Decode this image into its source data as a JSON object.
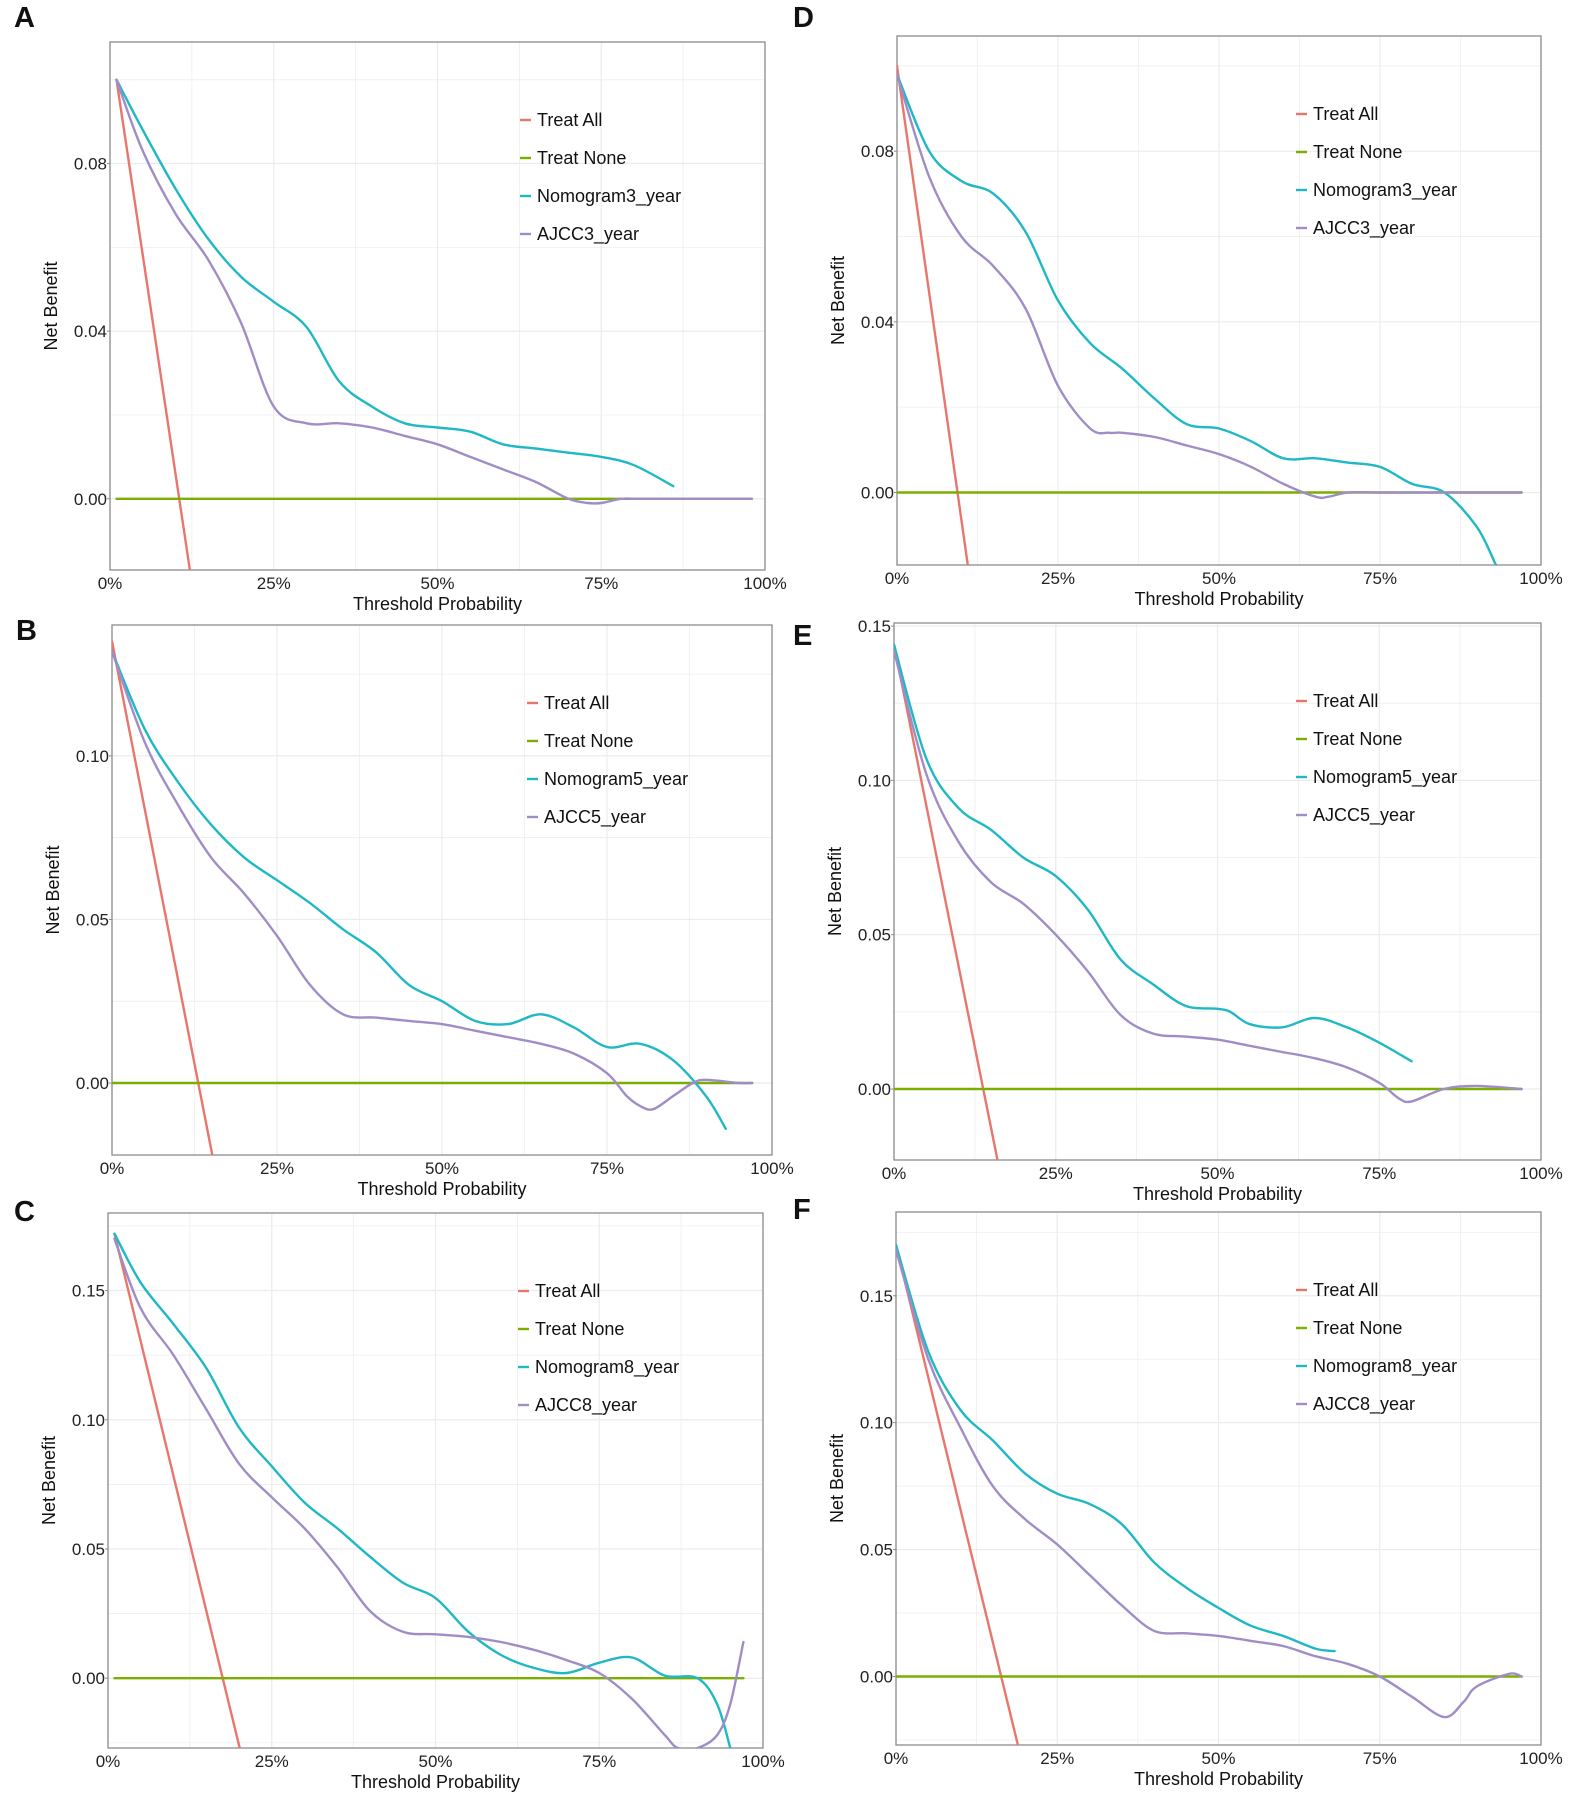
{
  "figure": {
    "colors": {
      "treat_all": "#e8766d",
      "treat_none": "#7cae00",
      "nomogram": "#1fb8c4",
      "ajcc": "#a18dc6",
      "grid": "#ececec",
      "frame": "#8c8c8c",
      "text": "#222222"
    }
  },
  "chart_data": [
    {
      "panel": "A",
      "type": "line",
      "xlabel": "Threshold Probability",
      "ylabel": "Net Benefit",
      "xlim": [
        0,
        100
      ],
      "ylim": [
        -0.017,
        0.109
      ],
      "xticks": [
        0,
        25,
        50,
        75,
        100
      ],
      "xtick_labels": [
        "0%",
        "25%",
        "50%",
        "75%",
        "100%"
      ],
      "yticks": [
        0.0,
        0.04,
        0.08
      ],
      "ytick_labels": [
        "0.00",
        "0.04",
        "0.08"
      ],
      "grid": true,
      "legend_position": "top-right",
      "legend": [
        "Treat All",
        "Treat None",
        "Nomogram3_year",
        "AJCC3_year"
      ],
      "series": [
        {
          "name": "Treat All",
          "role": "treat_all",
          "x": [
            1,
            12.2
          ],
          "y": [
            0.1,
            -0.017
          ]
        },
        {
          "name": "Treat None",
          "role": "treat_none",
          "x": [
            1,
            98
          ],
          "y": [
            0,
            0
          ]
        },
        {
          "name": "Nomogram3_year",
          "role": "nomogram",
          "x": [
            1,
            5,
            10,
            15,
            20,
            25,
            30,
            35,
            40,
            45,
            50,
            55,
            60,
            65,
            70,
            75,
            80,
            86
          ],
          "y": [
            0.1,
            0.088,
            0.074,
            0.062,
            0.053,
            0.047,
            0.041,
            0.028,
            0.022,
            0.018,
            0.017,
            0.016,
            0.013,
            0.012,
            0.011,
            0.01,
            0.008,
            0.003
          ]
        },
        {
          "name": "AJCC3_year",
          "role": "ajcc",
          "x": [
            1,
            5,
            10,
            15,
            20,
            25,
            30,
            35,
            40,
            45,
            50,
            55,
            60,
            65,
            70,
            73,
            75,
            78,
            80,
            85,
            90,
            98
          ],
          "y": [
            0.1,
            0.083,
            0.068,
            0.057,
            0.042,
            0.022,
            0.018,
            0.018,
            0.017,
            0.015,
            0.013,
            0.01,
            0.007,
            0.004,
            0.0,
            -0.001,
            -0.001,
            0.0,
            0.0,
            0.0,
            0.0,
            0.0
          ]
        }
      ]
    },
    {
      "panel": "B",
      "type": "line",
      "xlabel": "Threshold Probability",
      "ylabel": "Net Benefit",
      "xlim": [
        0,
        100
      ],
      "ylim": [
        -0.022,
        0.14
      ],
      "xticks": [
        0,
        25,
        50,
        75,
        100
      ],
      "xtick_labels": [
        "0%",
        "25%",
        "50%",
        "75%",
        "100%"
      ],
      "yticks": [
        0.0,
        0.05,
        0.1
      ],
      "ytick_labels": [
        "0.00",
        "0.05",
        "0.10"
      ],
      "grid": true,
      "legend_position": "top-right",
      "legend": [
        "Treat All",
        "Treat None",
        "Nomogram5_year",
        "AJCC5_year"
      ],
      "series": [
        {
          "name": "Treat All",
          "role": "treat_all",
          "x": [
            0,
            15.2
          ],
          "y": [
            0.135,
            -0.022
          ]
        },
        {
          "name": "Treat None",
          "role": "treat_none",
          "x": [
            0,
            97
          ],
          "y": [
            0,
            0
          ]
        },
        {
          "name": "Nomogram5_year",
          "role": "nomogram",
          "x": [
            0,
            5,
            10,
            15,
            20,
            25,
            30,
            35,
            40,
            45,
            50,
            55,
            60,
            65,
            70,
            75,
            80,
            85,
            90,
            93
          ],
          "y": [
            0.132,
            0.108,
            0.092,
            0.079,
            0.069,
            0.062,
            0.055,
            0.047,
            0.04,
            0.03,
            0.025,
            0.019,
            0.018,
            0.021,
            0.017,
            0.011,
            0.012,
            0.007,
            -0.004,
            -0.014
          ]
        },
        {
          "name": "AJCC5_year",
          "role": "ajcc",
          "x": [
            0,
            5,
            10,
            15,
            20,
            25,
            30,
            35,
            40,
            45,
            50,
            55,
            60,
            65,
            70,
            75,
            78,
            80,
            82,
            85,
            88,
            90,
            95,
            97
          ],
          "y": [
            0.132,
            0.104,
            0.085,
            0.069,
            0.058,
            0.045,
            0.03,
            0.021,
            0.02,
            0.019,
            0.018,
            0.016,
            0.014,
            0.012,
            0.009,
            0.003,
            -0.004,
            -0.007,
            -0.008,
            -0.004,
            0.0,
            0.001,
            0.0,
            0.0
          ]
        }
      ]
    },
    {
      "panel": "C",
      "type": "line",
      "xlabel": "Threshold Probability",
      "ylabel": "Net Benefit",
      "xlim": [
        0,
        100
      ],
      "ylim": [
        -0.027,
        0.18
      ],
      "xticks": [
        0,
        25,
        50,
        75,
        100
      ],
      "xtick_labels": [
        "0%",
        "25%",
        "50%",
        "75%",
        "100%"
      ],
      "yticks": [
        0.0,
        0.05,
        0.1,
        0.15
      ],
      "ytick_labels": [
        "0.00",
        "0.05",
        "0.10",
        "0.15"
      ],
      "grid": true,
      "legend_position": "top-right",
      "legend": [
        "Treat All",
        "Treat None",
        "Nomogram8_year",
        "AJCC8_year"
      ],
      "series": [
        {
          "name": "Treat All",
          "role": "treat_all",
          "x": [
            1,
            20.1
          ],
          "y": [
            0.172,
            -0.027
          ]
        },
        {
          "name": "Treat None",
          "role": "treat_none",
          "x": [
            1,
            97
          ],
          "y": [
            0,
            0
          ]
        },
        {
          "name": "Nomogram8_year",
          "role": "nomogram",
          "x": [
            1,
            5,
            10,
            15,
            20,
            25,
            30,
            35,
            40,
            45,
            50,
            55,
            60,
            65,
            70,
            75,
            80,
            85,
            90,
            93,
            95
          ],
          "y": [
            0.172,
            0.153,
            0.137,
            0.12,
            0.097,
            0.082,
            0.068,
            0.058,
            0.047,
            0.037,
            0.031,
            0.018,
            0.009,
            0.004,
            0.002,
            0.006,
            0.008,
            0.001,
            0.0,
            -0.01,
            -0.027
          ]
        },
        {
          "name": "AJCC8_year",
          "role": "ajcc",
          "x": [
            1,
            5,
            10,
            15,
            20,
            25,
            30,
            35,
            40,
            45,
            50,
            55,
            60,
            65,
            70,
            75,
            80,
            85,
            87,
            90,
            93,
            95,
            97
          ],
          "y": [
            0.17,
            0.143,
            0.125,
            0.104,
            0.083,
            0.07,
            0.058,
            0.043,
            0.026,
            0.018,
            0.017,
            0.016,
            0.014,
            0.011,
            0.007,
            0.002,
            -0.008,
            -0.022,
            -0.027,
            -0.027,
            -0.022,
            -0.01,
            0.014
          ]
        }
      ]
    },
    {
      "panel": "D",
      "type": "line",
      "xlabel": "Threshold Probability",
      "ylabel": "Net Benefit",
      "xlim": [
        0,
        100
      ],
      "ylim": [
        -0.017,
        0.107
      ],
      "xticks": [
        0,
        25,
        50,
        75,
        100
      ],
      "xtick_labels": [
        "0%",
        "25%",
        "50%",
        "75%",
        "100%"
      ],
      "yticks": [
        0.0,
        0.04,
        0.08
      ],
      "ytick_labels": [
        "0.00",
        "0.04",
        "0.08"
      ],
      "grid": true,
      "legend_position": "top-right",
      "legend": [
        "Treat All",
        "Treat None",
        "Nomogram3_year",
        "AJCC3_year"
      ],
      "series": [
        {
          "name": "Treat All",
          "role": "treat_all",
          "x": [
            0,
            11
          ],
          "y": [
            0.1,
            -0.017
          ]
        },
        {
          "name": "Treat None",
          "role": "treat_none",
          "x": [
            0,
            97
          ],
          "y": [
            0,
            0
          ]
        },
        {
          "name": "Nomogram3_year",
          "role": "nomogram",
          "x": [
            0,
            5,
            10,
            15,
            20,
            25,
            30,
            35,
            40,
            45,
            50,
            55,
            60,
            65,
            70,
            75,
            80,
            85,
            90,
            93
          ],
          "y": [
            0.098,
            0.08,
            0.073,
            0.07,
            0.061,
            0.045,
            0.035,
            0.029,
            0.022,
            0.016,
            0.015,
            0.012,
            0.008,
            0.008,
            0.007,
            0.006,
            0.002,
            0.0,
            -0.008,
            -0.017
          ]
        },
        {
          "name": "AJCC3_year",
          "role": "ajcc",
          "x": [
            0,
            5,
            10,
            15,
            20,
            25,
            30,
            33,
            35,
            40,
            45,
            50,
            55,
            60,
            65,
            67,
            70,
            75,
            80,
            90,
            97
          ],
          "y": [
            0.098,
            0.074,
            0.06,
            0.053,
            0.043,
            0.025,
            0.015,
            0.014,
            0.014,
            0.013,
            0.011,
            0.009,
            0.006,
            0.002,
            -0.001,
            -0.001,
            0.0,
            0.0,
            0.0,
            0.0,
            0.0
          ]
        }
      ]
    },
    {
      "panel": "E",
      "type": "line",
      "xlabel": "Threshold Probability",
      "ylabel": "Net Benefit",
      "xlim": [
        0,
        100
      ],
      "ylim": [
        -0.023,
        0.151
      ],
      "xticks": [
        0,
        25,
        50,
        75,
        100
      ],
      "xtick_labels": [
        "0%",
        "25%",
        "50%",
        "75%",
        "100%"
      ],
      "yticks": [
        0.0,
        0.05,
        0.1,
        0.15
      ],
      "ytick_labels": [
        "0.00",
        "0.05",
        "0.10",
        "0.15"
      ],
      "grid": true,
      "legend_position": "top-right",
      "legend": [
        "Treat All",
        "Treat None",
        "Nomogram5_year",
        "AJCC5_year"
      ],
      "series": [
        {
          "name": "Treat All",
          "role": "treat_all",
          "x": [
            0,
            16
          ],
          "y": [
            0.144,
            -0.023
          ]
        },
        {
          "name": "Treat None",
          "role": "treat_none",
          "x": [
            0,
            97
          ],
          "y": [
            0,
            0
          ]
        },
        {
          "name": "Nomogram5_year",
          "role": "nomogram",
          "x": [
            0,
            5,
            10,
            15,
            20,
            25,
            30,
            35,
            40,
            45,
            50,
            52,
            55,
            60,
            65,
            70,
            75,
            80
          ],
          "y": [
            0.144,
            0.107,
            0.091,
            0.084,
            0.075,
            0.069,
            0.058,
            0.042,
            0.034,
            0.027,
            0.026,
            0.025,
            0.021,
            0.02,
            0.023,
            0.02,
            0.015,
            0.009
          ]
        },
        {
          "name": "AJCC5_year",
          "role": "ajcc",
          "x": [
            0,
            5,
            10,
            15,
            20,
            25,
            30,
            35,
            40,
            45,
            50,
            55,
            60,
            65,
            70,
            75,
            78,
            80,
            85,
            90,
            97
          ],
          "y": [
            0.142,
            0.102,
            0.08,
            0.067,
            0.06,
            0.05,
            0.038,
            0.024,
            0.018,
            0.017,
            0.016,
            0.014,
            0.012,
            0.01,
            0.007,
            0.002,
            -0.003,
            -0.004,
            0.0,
            0.001,
            0.0
          ]
        }
      ]
    },
    {
      "panel": "F",
      "type": "line",
      "xlabel": "Threshold Probability",
      "ylabel": "Net Benefit",
      "xlim": [
        0,
        100
      ],
      "ylim": [
        -0.027,
        0.183
      ],
      "xticks": [
        0,
        25,
        50,
        75,
        100
      ],
      "xtick_labels": [
        "0%",
        "25%",
        "50%",
        "75%",
        "100%"
      ],
      "yticks": [
        0.0,
        0.05,
        0.1,
        0.15
      ],
      "ytick_labels": [
        "0.00",
        "0.05",
        "0.10",
        "0.15"
      ],
      "grid": true,
      "legend_position": "top-right",
      "legend": [
        "Treat All",
        "Treat None",
        "Nomogram8_year",
        "AJCC8_year"
      ],
      "series": [
        {
          "name": "Treat All",
          "role": "treat_all",
          "x": [
            0,
            18.9
          ],
          "y": [
            0.17,
            -0.027
          ]
        },
        {
          "name": "Treat None",
          "role": "treat_none",
          "x": [
            0,
            97
          ],
          "y": [
            0,
            0
          ]
        },
        {
          "name": "Nomogram8_year",
          "role": "nomogram",
          "x": [
            0,
            5,
            10,
            15,
            20,
            25,
            30,
            35,
            40,
            45,
            50,
            55,
            60,
            65,
            68
          ],
          "y": [
            0.17,
            0.128,
            0.105,
            0.093,
            0.08,
            0.072,
            0.068,
            0.06,
            0.045,
            0.035,
            0.027,
            0.02,
            0.016,
            0.011,
            0.01
          ]
        },
        {
          "name": "AJCC8_year",
          "role": "ajcc",
          "x": [
            0,
            5,
            10,
            15,
            20,
            25,
            30,
            35,
            40,
            45,
            50,
            55,
            60,
            65,
            70,
            75,
            80,
            85,
            88,
            90,
            95,
            97
          ],
          "y": [
            0.168,
            0.125,
            0.098,
            0.075,
            0.062,
            0.052,
            0.04,
            0.028,
            0.018,
            0.017,
            0.016,
            0.014,
            0.012,
            0.008,
            0.005,
            0.0,
            -0.008,
            -0.016,
            -0.01,
            -0.004,
            0.001,
            0.0
          ]
        }
      ]
    }
  ]
}
